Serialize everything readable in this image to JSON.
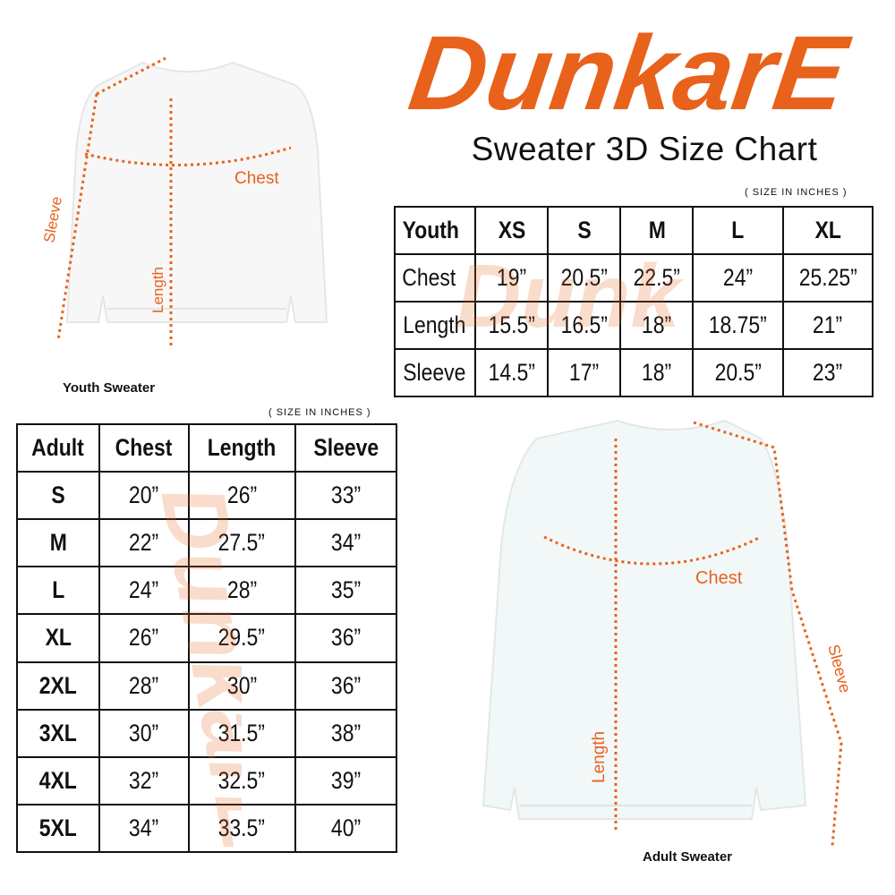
{
  "brand": {
    "logo_text": "DunkarE",
    "accent": "#e8621c"
  },
  "title": "Sweater 3D Size Chart",
  "youth": {
    "note": "( SIZE IN INCHES )",
    "caption": "Youth Sweater",
    "measure_labels": {
      "chest": "Chest",
      "length": "Length",
      "sleeve": "Sleeve"
    },
    "headers": [
      "Youth",
      "XS",
      "S",
      "M",
      "L",
      "XL"
    ],
    "rows": [
      [
        "Chest",
        "19”",
        "20.5”",
        "22.5”",
        "24”",
        "25.25”"
      ],
      [
        "Length",
        "15.5”",
        "16.5”",
        "18”",
        "18.75”",
        "21”"
      ],
      [
        "Sleeve",
        "14.5”",
        "17”",
        "18”",
        "20.5”",
        "23”"
      ]
    ]
  },
  "adult": {
    "note": "( SIZE IN INCHES )",
    "caption": "Adult Sweater",
    "measure_labels": {
      "chest": "Chest",
      "length": "Length",
      "sleeve": "Sleeve"
    },
    "headers": [
      "Adult",
      "Chest",
      "Length",
      "Sleeve"
    ],
    "rows": [
      [
        "S",
        "20”",
        "26”",
        "33”"
      ],
      [
        "M",
        "22”",
        "27.5”",
        "34”"
      ],
      [
        "L",
        "24”",
        "28”",
        "35”"
      ],
      [
        "XL",
        "26”",
        "29.5”",
        "36”"
      ],
      [
        "2XL",
        "28”",
        "30”",
        "36”"
      ],
      [
        "3XL",
        "30”",
        "31.5”",
        "38”"
      ],
      [
        "4XL",
        "32”",
        "32.5”",
        "39”"
      ],
      [
        "5XL",
        "34”",
        "33.5”",
        "40”"
      ]
    ]
  }
}
